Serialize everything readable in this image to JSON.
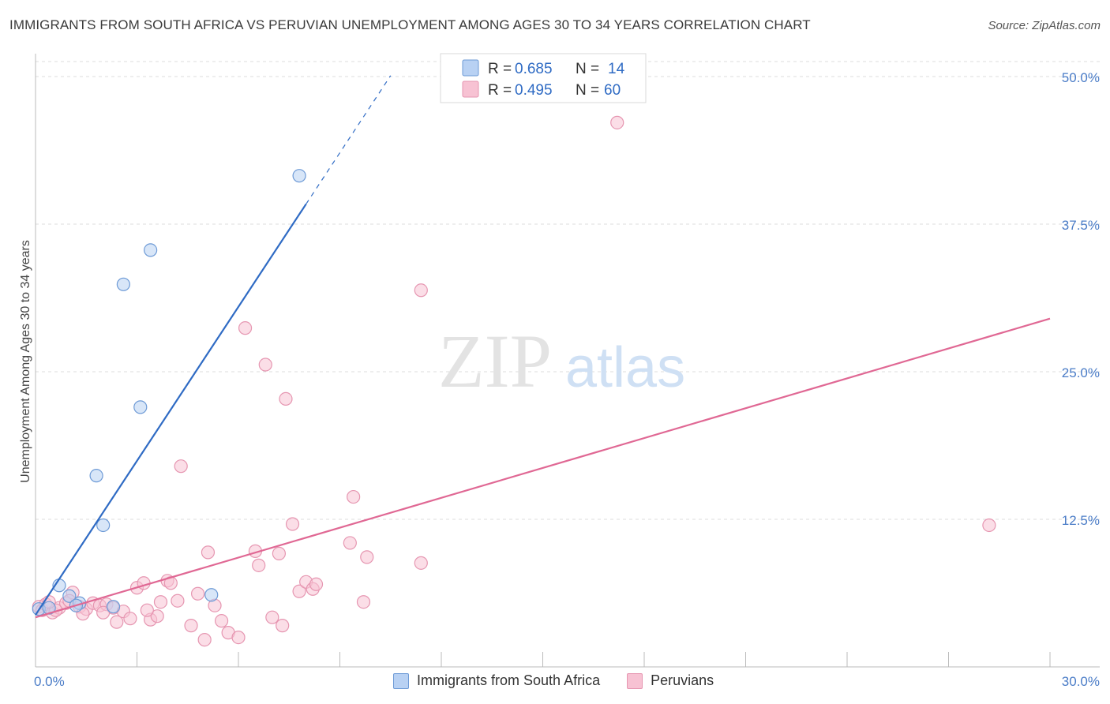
{
  "title": "IMMIGRANTS FROM SOUTH AFRICA VS PERUVIAN UNEMPLOYMENT AMONG AGES 30 TO 34 YEARS CORRELATION CHART",
  "source": "Source: ZipAtlas.com",
  "watermark": {
    "zip": "ZIP",
    "atlas": "atlas"
  },
  "colors": {
    "blue": "#4a7cc7",
    "blue_fill": "#b8d1f3",
    "blue_line": "#2f6bc4",
    "pink": "#e8709a",
    "pink_fill": "#f7c2d3",
    "pink_line": "#e06894",
    "grid": "#dddddd"
  },
  "legend": {
    "r_label": "R =",
    "n_label": "N =",
    "rows": [
      {
        "r": "0.685",
        "n": "14"
      },
      {
        "r": "0.495",
        "n": "60"
      }
    ]
  },
  "chart_data": {
    "type": "scatter",
    "title": "IMMIGRANTS FROM SOUTH AFRICA VS PERUVIAN UNEMPLOYMENT AMONG AGES 30 TO 34 YEARS CORRELATION CHART",
    "xlabel": "",
    "ylabel": "Unemployment Among Ages 30 to 34 years",
    "xlim": [
      0,
      30
    ],
    "ylim": [
      0,
      50
    ],
    "x_tick_labels": [
      "0.0%",
      "30.0%"
    ],
    "y_ticks": [
      12.5,
      25.0,
      37.5,
      50.0
    ],
    "y_tick_labels": [
      "12.5%",
      "25.0%",
      "37.5%",
      "50.0%"
    ],
    "grid": true,
    "series": [
      {
        "name": "Immigrants from South Africa",
        "color": "blue",
        "r": 0.685,
        "n": 14,
        "trend": {
          "x0": 0,
          "y0": 4.4,
          "x1": 8.0,
          "y1": 39.2,
          "dashed_to_x": 10.5
        },
        "points": [
          [
            0.1,
            4.9
          ],
          [
            0.4,
            5.0
          ],
          [
            0.7,
            6.9
          ],
          [
            1.0,
            6.0
          ],
          [
            1.3,
            5.4
          ],
          [
            1.2,
            5.2
          ],
          [
            2.3,
            5.1
          ],
          [
            1.8,
            16.2
          ],
          [
            2.0,
            12.0
          ],
          [
            3.1,
            22.0
          ],
          [
            2.6,
            32.4
          ],
          [
            3.4,
            35.3
          ],
          [
            5.2,
            6.1
          ],
          [
            7.8,
            41.6
          ]
        ]
      },
      {
        "name": "Peruvians",
        "color": "pink",
        "r": 0.495,
        "n": 60,
        "trend": {
          "x0": 0,
          "y0": 4.2,
          "x1": 30,
          "y1": 29.5
        },
        "points": [
          [
            0.1,
            5.1
          ],
          [
            0.2,
            4.8
          ],
          [
            0.3,
            5.3
          ],
          [
            0.5,
            4.6
          ],
          [
            0.7,
            5.0
          ],
          [
            0.9,
            5.4
          ],
          [
            1.1,
            6.3
          ],
          [
            1.3,
            5.1
          ],
          [
            1.5,
            4.9
          ],
          [
            1.7,
            5.4
          ],
          [
            1.9,
            5.2
          ],
          [
            2.1,
            5.3
          ],
          [
            2.3,
            5.0
          ],
          [
            2.4,
            3.8
          ],
          [
            2.6,
            4.7
          ],
          [
            2.8,
            4.1
          ],
          [
            3.0,
            6.7
          ],
          [
            3.2,
            7.1
          ],
          [
            3.4,
            4.0
          ],
          [
            3.6,
            4.3
          ],
          [
            3.7,
            5.5
          ],
          [
            3.9,
            7.3
          ],
          [
            4.0,
            7.1
          ],
          [
            4.2,
            5.6
          ],
          [
            4.3,
            17.0
          ],
          [
            4.6,
            3.5
          ],
          [
            4.8,
            6.2
          ],
          [
            5.0,
            2.3
          ],
          [
            5.1,
            9.7
          ],
          [
            5.3,
            5.2
          ],
          [
            5.5,
            3.9
          ],
          [
            5.7,
            2.9
          ],
          [
            6.0,
            2.5
          ],
          [
            6.2,
            28.7
          ],
          [
            6.5,
            9.8
          ],
          [
            6.6,
            8.6
          ],
          [
            6.8,
            25.6
          ],
          [
            7.0,
            4.2
          ],
          [
            7.2,
            9.6
          ],
          [
            7.3,
            3.5
          ],
          [
            7.4,
            22.7
          ],
          [
            7.6,
            12.1
          ],
          [
            7.8,
            6.4
          ],
          [
            8.0,
            7.2
          ],
          [
            8.2,
            6.6
          ],
          [
            8.3,
            7.0
          ],
          [
            9.3,
            10.5
          ],
          [
            9.4,
            14.4
          ],
          [
            9.7,
            5.5
          ],
          [
            9.8,
            9.3
          ],
          [
            11.4,
            8.8
          ],
          [
            11.4,
            31.9
          ],
          [
            17.2,
            46.1
          ],
          [
            28.2,
            12.0
          ],
          [
            0.6,
            4.8
          ],
          [
            1.4,
            4.5
          ],
          [
            2.0,
            4.6
          ],
          [
            3.3,
            4.8
          ],
          [
            1.0,
            5.6
          ],
          [
            0.4,
            5.5
          ]
        ]
      }
    ]
  }
}
